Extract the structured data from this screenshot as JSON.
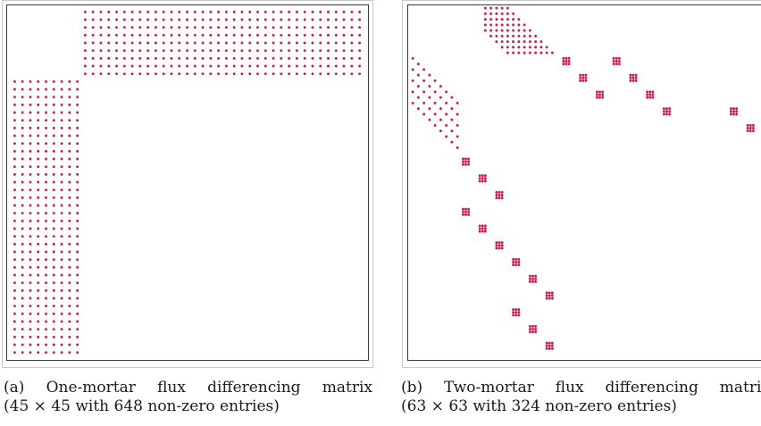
{
  "figure": {
    "dot_color": "#c81e4b",
    "panels": [
      {
        "id": "a",
        "caption_line1": "(a) One-mortar flux differencing matrix",
        "caption_line2": "(45 × 45 with 648 non-zero entries)"
      },
      {
        "id": "b",
        "caption_line1": "(b) Two-mortar flux differencing matrix",
        "caption_line2": "(63 × 63 with 324 non-zero entries)"
      }
    ]
  }
}
